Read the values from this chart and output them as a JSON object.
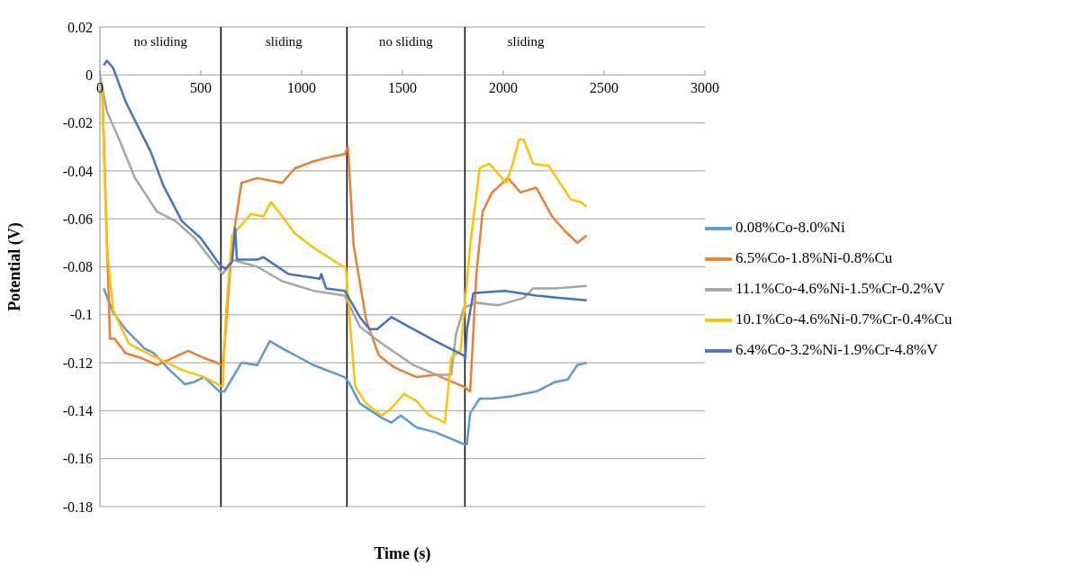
{
  "chart_data": {
    "type": "line",
    "xlabel": "Time (s)",
    "ylabel": "Potential (V)",
    "xlim": [
      0,
      3000
    ],
    "xticks": [
      0,
      500,
      1000,
      1500,
      2000,
      2500,
      3000
    ],
    "ylim": [
      -0.18,
      0.02
    ],
    "yticks": [
      0.02,
      0,
      -0.02,
      -0.04,
      -0.06,
      -0.08,
      -0.1,
      -0.12,
      -0.14,
      -0.16,
      -0.18
    ],
    "grid": "y",
    "legend": "right",
    "series": [
      {
        "name": "0.08%Co-8.0%Ni",
        "color": "#5b9bd5",
        "x": [
          19,
          65,
          127,
          220,
          267,
          345,
          422,
          469,
          516,
          593,
          617,
          702,
          780,
          842,
          904,
          1059,
          1214,
          1240,
          1289,
          1398,
          1445,
          1492,
          1570,
          1664,
          1805,
          1820,
          1836,
          1883,
          1945,
          2039,
          2164,
          2258,
          2320,
          2367,
          2414
        ],
        "values": [
          -0.089,
          -0.099,
          -0.106,
          -0.114,
          -0.116,
          -0.123,
          -0.129,
          -0.128,
          -0.126,
          -0.132,
          -0.132,
          -0.12,
          -0.121,
          -0.111,
          -0.114,
          -0.121,
          -0.126,
          -0.129,
          -0.137,
          -0.143,
          -0.145,
          -0.142,
          -0.147,
          -0.149,
          -0.154,
          -0.154,
          -0.141,
          -0.135,
          -0.135,
          -0.134,
          -0.132,
          -0.128,
          -0.127,
          -0.121,
          -0.12
        ]
      },
      {
        "name": "6.5%Co-1.8%Ni-0.8%Cu",
        "color": "#ed7d31",
        "x": [
          11,
          50,
          73,
          127,
          205,
          283,
          360,
          438,
          516,
          609,
          624,
          655,
          702,
          780,
          904,
          966,
          1059,
          1152,
          1214,
          1230,
          1258,
          1320,
          1383,
          1461,
          1570,
          1664,
          1805,
          1836,
          1867,
          1898,
          1945,
          2023,
          2086,
          2164,
          2242,
          2305,
          2367,
          2414
        ],
        "values": [
          -0.005,
          -0.11,
          -0.11,
          -0.116,
          -0.118,
          -0.121,
          -0.118,
          -0.115,
          -0.118,
          -0.121,
          -0.106,
          -0.071,
          -0.045,
          -0.043,
          -0.045,
          -0.039,
          -0.036,
          -0.034,
          -0.033,
          -0.03,
          -0.071,
          -0.102,
          -0.117,
          -0.122,
          -0.126,
          -0.125,
          -0.13,
          -0.132,
          -0.083,
          -0.057,
          -0.049,
          -0.043,
          -0.049,
          -0.047,
          -0.059,
          -0.065,
          -0.07,
          -0.067
        ]
      },
      {
        "name": "11.1%Co-4.6%Ni-1.5%Cr-0.2%V",
        "color": "#a5a5a5",
        "x": [
          0,
          34,
          96,
          174,
          283,
          376,
          469,
          562,
          609,
          655,
          780,
          904,
          1059,
          1214,
          1289,
          1398,
          1555,
          1664,
          1742,
          1766,
          1805,
          1867,
          1977,
          2102,
          2148,
          2258,
          2414
        ],
        "values": [
          0,
          -0.015,
          -0.027,
          -0.043,
          -0.057,
          -0.061,
          -0.068,
          -0.078,
          -0.083,
          -0.077,
          -0.08,
          -0.086,
          -0.09,
          -0.092,
          -0.105,
          -0.112,
          -0.121,
          -0.125,
          -0.125,
          -0.108,
          -0.097,
          -0.095,
          -0.096,
          -0.093,
          -0.089,
          -0.089,
          -0.088
        ]
      },
      {
        "name": "10.1%Co-4.6%Ni-0.7%Cr-0.4%Cu",
        "color": "#ffc000",
        "x": [
          11,
          34,
          65,
          143,
          283,
          407,
          516,
          609,
          624,
          655,
          749,
          811,
          849,
          904,
          966,
          1059,
          1152,
          1207,
          1219,
          1234,
          1266,
          1320,
          1398,
          1445,
          1508,
          1570,
          1633,
          1711,
          1742,
          1789,
          1836,
          1883,
          1930,
          2016,
          2047,
          2078,
          2102,
          2148,
          2227,
          2336,
          2383,
          2414
        ],
        "values": [
          -0.005,
          -0.071,
          -0.098,
          -0.112,
          -0.118,
          -0.123,
          -0.126,
          -0.13,
          -0.101,
          -0.067,
          -0.058,
          -0.059,
          -0.053,
          -0.059,
          -0.066,
          -0.072,
          -0.077,
          -0.08,
          -0.08,
          -0.097,
          -0.13,
          -0.137,
          -0.142,
          -0.139,
          -0.133,
          -0.136,
          -0.142,
          -0.145,
          -0.118,
          -0.115,
          -0.071,
          -0.039,
          -0.037,
          -0.045,
          -0.037,
          -0.027,
          -0.027,
          -0.037,
          -0.038,
          -0.052,
          -0.053,
          -0.055
        ]
      },
      {
        "name": "6.4%Co-3.2%Ni-1.9%Cr-4.8%V",
        "color": "#4472c4",
        "x": [
          19,
          34,
          65,
          127,
          174,
          252,
          314,
          407,
          500,
          593,
          624,
          655,
          671,
          679,
          780,
          811,
          935,
          1090,
          1098,
          1121,
          1214,
          1289,
          1336,
          1375,
          1445,
          1555,
          1664,
          1805,
          1812,
          1820,
          1852,
          2008,
          2164,
          2289,
          2414
        ],
        "values": [
          0.004,
          0.006,
          0.003,
          -0.011,
          -0.019,
          -0.032,
          -0.046,
          -0.061,
          -0.068,
          -0.079,
          -0.081,
          -0.078,
          -0.064,
          -0.077,
          -0.077,
          -0.076,
          -0.083,
          -0.085,
          -0.083,
          -0.089,
          -0.09,
          -0.101,
          -0.106,
          -0.106,
          -0.101,
          -0.106,
          -0.111,
          -0.117,
          -0.118,
          -0.106,
          -0.091,
          -0.09,
          -0.092,
          -0.093,
          -0.094
        ]
      }
    ],
    "ref_lines": [
      {
        "axis": "x",
        "value": 600,
        "color": "#000000"
      },
      {
        "axis": "x",
        "value": 1225,
        "color": "#000000"
      },
      {
        "axis": "x",
        "value": 1810,
        "color": "#000000"
      }
    ],
    "annotations": [
      "no sliding",
      "sliding",
      "no sliding",
      "sliding"
    ]
  }
}
